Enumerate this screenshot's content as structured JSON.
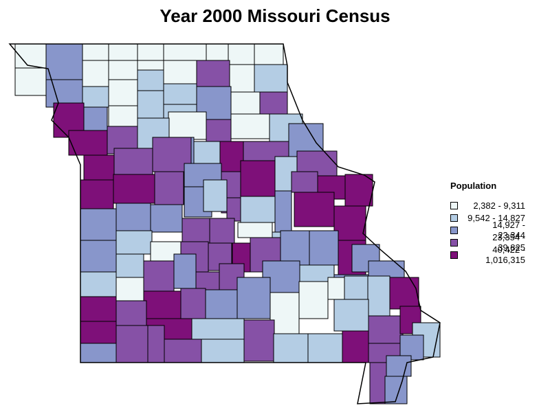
{
  "title": "Year 2000 Missouri Census",
  "legend": {
    "title": "Population",
    "bins": [
      {
        "label": "2,382 - 9,311",
        "color": "#eef7f7"
      },
      {
        "label": "9,542 - 14,827",
        "color": "#b4cde4"
      },
      {
        "label": "14,927 - 23,344",
        "color": "#8896cb"
      },
      {
        "label": "23,354 - 39,825",
        "color": "#8651a6"
      },
      {
        "label": "40,422 - 1,016,315",
        "color": "#7e1079"
      }
    ]
  }
}
